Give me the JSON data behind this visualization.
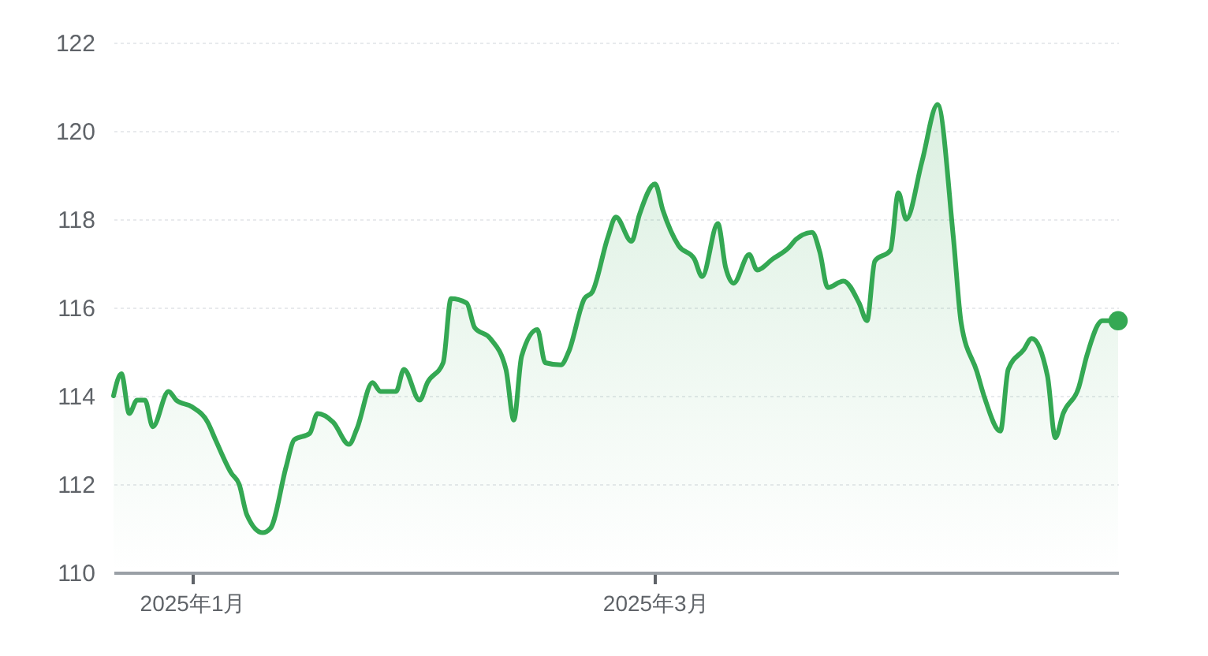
{
  "chart_data": {
    "type": "area",
    "xlim": [
      "2024-12-22",
      "2025-04-29"
    ],
    "ylim": [
      110,
      122
    ],
    "xticks": [
      {
        "value": "2025-01-01",
        "label": "2025年1月"
      },
      {
        "value": "2025-03-01",
        "label": "2025年3月"
      }
    ],
    "yticks": [
      110,
      112,
      114,
      116,
      118,
      120,
      122
    ],
    "grid": "y",
    "series": [
      {
        "color": "#34a853",
        "x": [
          "2024-12-22",
          "2024-12-23",
          "2024-12-24",
          "2024-12-25",
          "2024-12-26",
          "2024-12-27",
          "2024-12-29",
          "2024-12-30",
          "2025-01-01",
          "2025-01-03",
          "2025-01-04",
          "2025-01-06",
          "2025-01-07",
          "2025-01-08",
          "2025-01-10",
          "2025-01-11",
          "2025-01-13",
          "2025-01-14",
          "2025-01-16",
          "2025-01-17",
          "2025-01-19",
          "2025-01-21",
          "2025-01-22",
          "2025-01-24",
          "2025-01-25",
          "2025-01-27",
          "2025-01-28",
          "2025-01-30",
          "2025-01-31",
          "2025-02-02",
          "2025-02-03",
          "2025-02-05",
          "2025-02-06",
          "2025-02-08",
          "2025-02-10",
          "2025-02-11",
          "2025-02-12",
          "2025-02-14",
          "2025-02-15",
          "2025-02-17",
          "2025-02-18",
          "2025-02-20",
          "2025-02-21",
          "2025-02-23",
          "2025-02-24",
          "2025-02-26",
          "2025-02-27",
          "2025-03-01",
          "2025-03-02",
          "2025-03-04",
          "2025-03-06",
          "2025-03-07",
          "2025-03-09",
          "2025-03-10",
          "2025-03-11",
          "2025-03-13",
          "2025-03-14",
          "2025-03-16",
          "2025-03-18",
          "2025-03-19",
          "2025-03-21",
          "2025-03-22",
          "2025-03-23",
          "2025-03-25",
          "2025-03-27",
          "2025-03-28",
          "2025-03-29",
          "2025-03-31",
          "2025-04-01",
          "2025-04-02",
          "2025-04-04",
          "2025-04-06",
          "2025-04-08",
          "2025-04-09",
          "2025-04-11",
          "2025-04-12",
          "2025-04-14",
          "2025-04-15",
          "2025-04-17",
          "2025-04-18",
          "2025-04-20",
          "2025-04-21",
          "2025-04-22",
          "2025-04-24",
          "2025-04-25",
          "2025-04-27",
          "2025-04-28",
          "2025-04-29"
        ],
        "values": [
          114.0,
          114.5,
          113.6,
          113.9,
          113.9,
          113.3,
          114.1,
          113.9,
          113.75,
          113.4,
          113.0,
          112.25,
          112.0,
          111.3,
          110.9,
          111.0,
          112.4,
          113.0,
          113.15,
          113.6,
          113.4,
          112.9,
          113.25,
          114.3,
          114.1,
          114.1,
          114.6,
          113.9,
          114.3,
          114.75,
          116.2,
          116.1,
          115.55,
          115.3,
          114.6,
          113.45,
          114.9,
          115.5,
          114.75,
          114.7,
          115.0,
          116.2,
          116.35,
          117.6,
          118.05,
          117.5,
          118.1,
          118.8,
          118.2,
          117.4,
          117.1,
          116.7,
          117.9,
          116.9,
          116.55,
          117.2,
          116.85,
          117.1,
          117.35,
          117.55,
          117.7,
          117.25,
          116.45,
          116.6,
          116.1,
          115.7,
          117.05,
          117.3,
          118.6,
          118.0,
          119.3,
          120.6,
          117.6,
          115.65,
          114.55,
          113.95,
          113.2,
          114.6,
          115.05,
          115.3,
          114.45,
          113.05,
          113.6,
          114.2,
          114.9,
          115.7,
          115.7,
          115.7
        ]
      },
      {
        "type": "scatter",
        "marker": "circle",
        "color": "#34a853",
        "x": [
          "2025-04-29"
        ],
        "values": [
          115.7
        ]
      }
    ]
  }
}
